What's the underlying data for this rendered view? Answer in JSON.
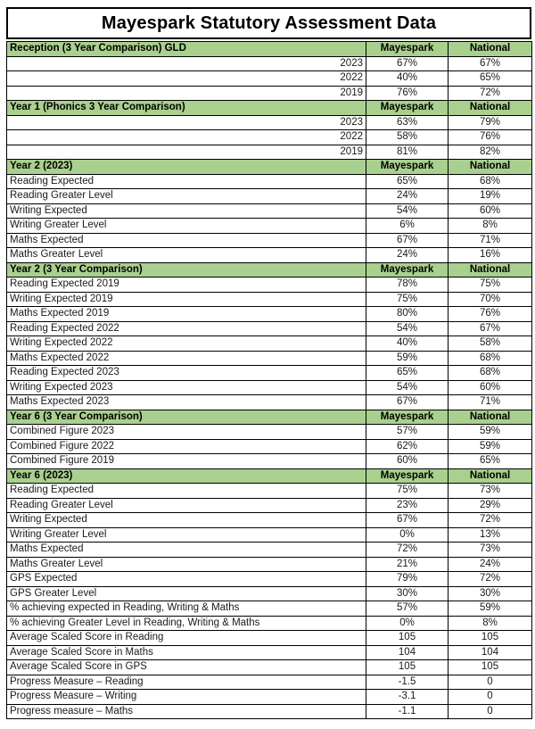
{
  "title": "Mayespark Statutory Assessment Data",
  "column_headers": {
    "school": "Mayespark",
    "national": "National"
  },
  "colors": {
    "section_header_bg": "#A9D08E",
    "border": "#000000",
    "text": "#1a1a1a"
  },
  "sections": [
    {
      "header": "Reception (3 Year Comparison) GLD",
      "rows": [
        {
          "label": "2023",
          "align": "right",
          "mayespark": "67%",
          "national": "67%"
        },
        {
          "label": "2022",
          "align": "right",
          "mayespark": "40%",
          "national": "65%"
        },
        {
          "label": "2019",
          "align": "right",
          "mayespark": "76%",
          "national": "72%"
        }
      ]
    },
    {
      "header": "Year 1 (Phonics 3 Year Comparison)",
      "rows": [
        {
          "label": "2023",
          "align": "right",
          "mayespark": "63%",
          "national": "79%"
        },
        {
          "label": "2022",
          "align": "right",
          "mayespark": "58%",
          "national": "76%"
        },
        {
          "label": "2019",
          "align": "right",
          "mayespark": "81%",
          "national": "82%"
        }
      ]
    },
    {
      "header": "Year 2 (2023)",
      "rows": [
        {
          "label": "Reading Expected",
          "align": "left",
          "mayespark": "65%",
          "national": "68%"
        },
        {
          "label": "Reading Greater Level",
          "align": "left",
          "mayespark": "24%",
          "national": "19%"
        },
        {
          "label": "Writing Expected",
          "align": "left",
          "mayespark": "54%",
          "national": "60%"
        },
        {
          "label": "Writing Greater Level",
          "align": "left",
          "mayespark": "6%",
          "national": "8%"
        },
        {
          "label": "Maths Expected",
          "align": "left",
          "mayespark": "67%",
          "national": "71%"
        },
        {
          "label": "Maths Greater Level",
          "align": "left",
          "mayespark": "24%",
          "national": "16%"
        }
      ]
    },
    {
      "header": "Year 2 (3 Year Comparison)",
      "rows": [
        {
          "label": "Reading Expected 2019",
          "align": "left",
          "mayespark": "78%",
          "national": "75%"
        },
        {
          "label": "Writing Expected 2019",
          "align": "left",
          "mayespark": "75%",
          "national": "70%"
        },
        {
          "label": "Maths Expected 2019",
          "align": "left",
          "mayespark": "80%",
          "national": "76%"
        },
        {
          "label": "Reading Expected 2022",
          "align": "left",
          "mayespark": "54%",
          "national": "67%"
        },
        {
          "label": "Writing Expected 2022",
          "align": "left",
          "mayespark": "40%",
          "national": "58%"
        },
        {
          "label": "Maths Expected 2022",
          "align": "left",
          "mayespark": "59%",
          "national": "68%"
        },
        {
          "label": "Reading Expected 2023",
          "align": "left",
          "mayespark": "65%",
          "national": "68%"
        },
        {
          "label": "Writing Expected 2023",
          "align": "left",
          "mayespark": "54%",
          "national": "60%"
        },
        {
          "label": "Maths Expected 2023",
          "align": "left",
          "mayespark": "67%",
          "national": "71%"
        }
      ]
    },
    {
      "header": "Year 6 (3 Year Comparison)",
      "rows": [
        {
          "label": "Combined Figure 2023",
          "align": "left",
          "mayespark": "57%",
          "national": "59%"
        },
        {
          "label": "Combined Figure 2022",
          "align": "left",
          "mayespark": "62%",
          "national": "59%"
        },
        {
          "label": "Combined Figure 2019",
          "align": "left",
          "mayespark": "60%",
          "national": "65%"
        }
      ]
    },
    {
      "header": "Year 6 (2023)",
      "rows": [
        {
          "label": "Reading Expected",
          "align": "left",
          "mayespark": "75%",
          "national": "73%"
        },
        {
          "label": "Reading Greater Level",
          "align": "left",
          "mayespark": "23%",
          "national": "29%"
        },
        {
          "label": "Writing Expected",
          "align": "left",
          "mayespark": "67%",
          "national": "72%"
        },
        {
          "label": "Writing Greater Level",
          "align": "left",
          "mayespark": "0%",
          "national": "13%"
        },
        {
          "label": "Maths Expected",
          "align": "left",
          "mayespark": "72%",
          "national": "73%"
        },
        {
          "label": "Maths Greater Level",
          "align": "left",
          "mayespark": "21%",
          "national": "24%"
        },
        {
          "label": "GPS Expected",
          "align": "left",
          "mayespark": "79%",
          "national": "72%"
        },
        {
          "label": "GPS Greater Level",
          "align": "left",
          "mayespark": "30%",
          "national": "30%"
        },
        {
          "label": "% achieving expected in Reading, Writing & Maths",
          "align": "left",
          "mayespark": "57%",
          "national": "59%"
        },
        {
          "label": "% achieving Greater Level in Reading, Writing & Maths",
          "align": "left",
          "mayespark": "0%",
          "national": "8%"
        },
        {
          "label": "Average Scaled Score in Reading",
          "align": "left",
          "mayespark": "105",
          "national": "105"
        },
        {
          "label": "Average Scaled Score in Maths",
          "align": "left",
          "mayespark": "104",
          "national": "104"
        },
        {
          "label": "Average Scaled Score in GPS",
          "align": "left",
          "mayespark": "105",
          "national": "105"
        },
        {
          "label": "Progress Measure – Reading",
          "align": "left",
          "mayespark": "-1.5",
          "national": "0"
        },
        {
          "label": "Progress Measure – Writing",
          "align": "left",
          "mayespark": "-3.1",
          "national": "0"
        },
        {
          "label": "Progress measure – Maths",
          "align": "left",
          "mayespark": "-1.1",
          "national": "0"
        }
      ]
    }
  ]
}
